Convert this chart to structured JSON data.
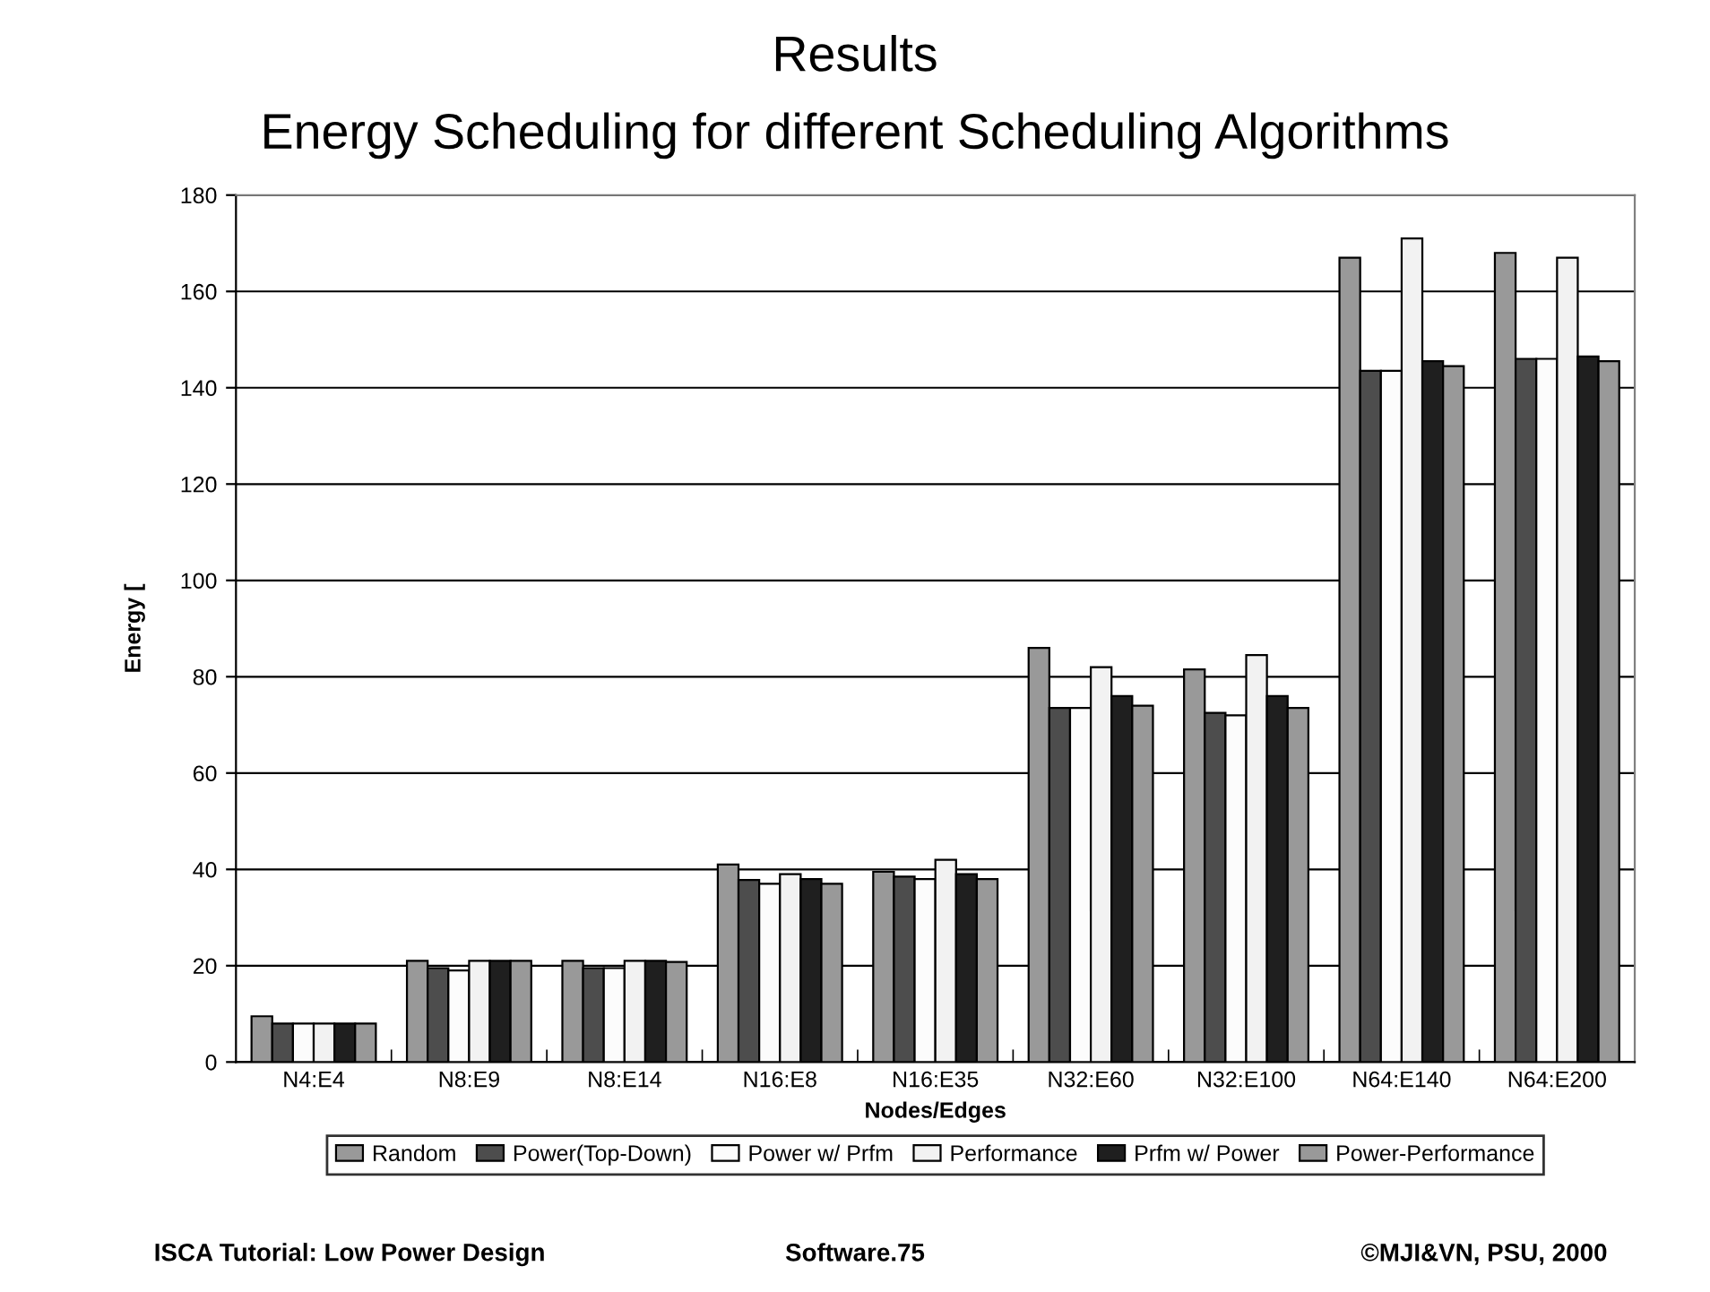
{
  "chart_data": {
    "type": "bar",
    "title": "Results",
    "subtitle": "Energy Scheduling for different Scheduling Algorithms",
    "xlabel": "Nodes/Edges",
    "ylabel": "Energy [",
    "categories": [
      "N4:E4",
      "N8:E9",
      "N8:E14",
      "N16:E8",
      "N16:E35",
      "N32:E60",
      "N32:E100",
      "N64:E140",
      "N64:E200"
    ],
    "series": [
      {
        "name": "Random",
        "color": "#999999",
        "values": [
          9.5,
          21,
          21,
          41,
          39.5,
          86,
          81.5,
          167,
          168
        ]
      },
      {
        "name": "Power(Top-Down)",
        "color": "#4d4d4d",
        "values": [
          8,
          19.5,
          19.5,
          37.8,
          38.5,
          73.5,
          72.5,
          143.5,
          146
        ]
      },
      {
        "name": "Power w/ Prfm",
        "color": "#fcfcfc",
        "values": [
          8,
          19,
          19.5,
          37,
          38,
          73.5,
          72,
          143.5,
          146
        ]
      },
      {
        "name": "Performance",
        "color": "#f2f2f2",
        "values": [
          8,
          21,
          21,
          39,
          42,
          82,
          84.5,
          171,
          167
        ]
      },
      {
        "name": "Prfm w/ Power",
        "color": "#1f1f1f",
        "values": [
          8,
          21,
          21,
          38,
          39,
          76,
          76,
          145.5,
          146.5
        ]
      },
      {
        "name": "Power-Performance",
        "color": "#999999",
        "values": [
          8,
          21,
          20.8,
          37,
          38,
          74,
          73.5,
          144.5,
          145.5
        ]
      }
    ],
    "ylim": [
      0,
      180
    ],
    "yticks": [
      0,
      20,
      40,
      60,
      80,
      100,
      120,
      140,
      160,
      180
    ],
    "grid": "y",
    "legend": "bottom",
    "annotations": [
      "ISCA Tutorial: Low Power Design",
      "Software.75",
      "©MJI&VN, PSU, 2000"
    ]
  }
}
